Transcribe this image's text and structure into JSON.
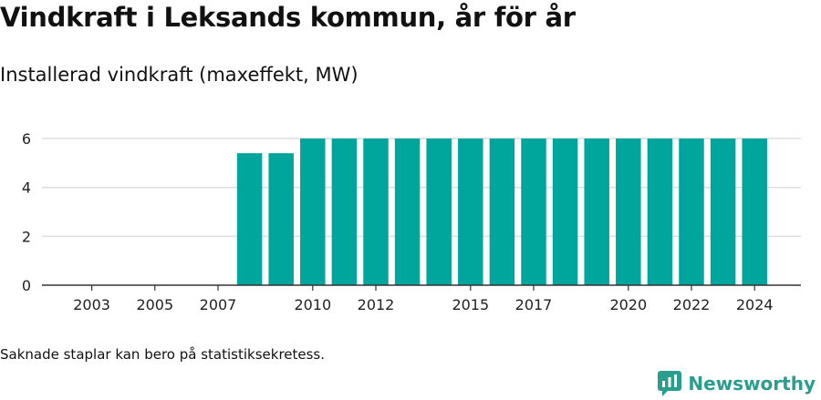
{
  "header": {
    "title": "Vindkraft i Leksands kommun, år för år",
    "subtitle": "Installerad vindkraft (maxeffekt, MW)"
  },
  "footer": {
    "note": "Saknade staplar kan bero på statistiksekretess.",
    "brand": "Newsworthy"
  },
  "colors": {
    "bar": "#00a59b",
    "grid": "#dddddd",
    "axis": "#333333",
    "brand": "#2a9d8f"
  },
  "chart_data": {
    "type": "bar",
    "categories": [
      "2002",
      "2003",
      "2004",
      "2005",
      "2006",
      "2007",
      "2008",
      "2009",
      "2010",
      "2011",
      "2012",
      "2013",
      "2014",
      "2015",
      "2016",
      "2017",
      "2018",
      "2019",
      "2020",
      "2021",
      "2022",
      "2023",
      "2024"
    ],
    "values": [
      0,
      0,
      0,
      0,
      0,
      0,
      5.4,
      5.4,
      6,
      6,
      6,
      6,
      6,
      6,
      6,
      6,
      6,
      6,
      6,
      6,
      6,
      6,
      6
    ],
    "x_tick_labels": [
      "2003",
      "2005",
      "2007",
      "2010",
      "2012",
      "2015",
      "2017",
      "2020",
      "2022",
      "2024"
    ],
    "y_ticks": [
      0,
      2,
      4,
      6
    ],
    "ylim": [
      0,
      6.3
    ],
    "grid": true,
    "xlabel": "",
    "ylabel": ""
  }
}
